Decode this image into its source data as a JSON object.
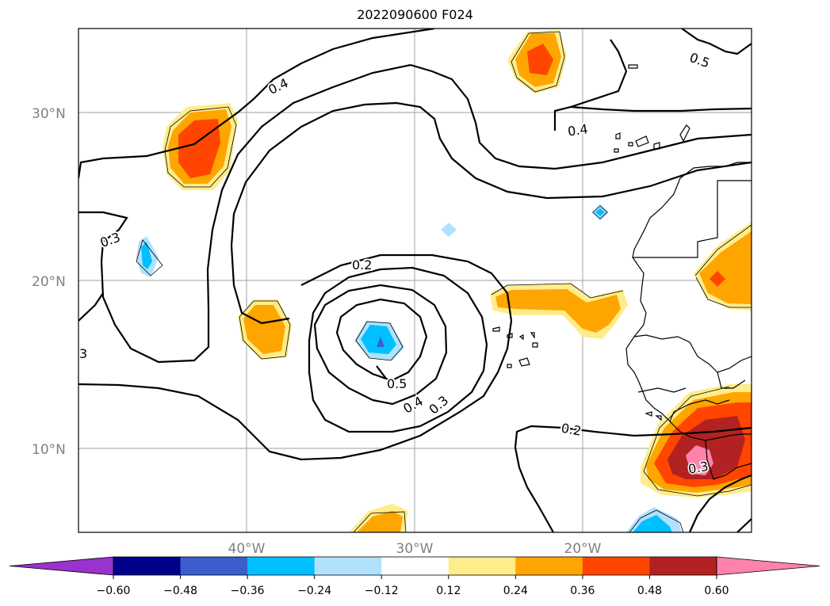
{
  "title": "2022090600 F024",
  "axes": {
    "lat_labels": [
      "30°N",
      "20°N",
      "10°N"
    ],
    "lon_labels": [
      "40°W",
      "30°W",
      "20°W"
    ]
  },
  "contour_labels": [
    "0.4",
    "0.5",
    "0.4",
    "0.3",
    "3",
    "0.2",
    "0.5",
    "0.4",
    "0.3",
    "0.2",
    "0.3"
  ],
  "colorbar": {
    "ticks": [
      "−0.60",
      "−0.48",
      "−0.36",
      "−0.24",
      "−0.12",
      "0.12",
      "0.24",
      "0.36",
      "0.48",
      "0.60"
    ],
    "colors": [
      "#9a32cd",
      "#00008b",
      "#3a5fcd",
      "#00bfff",
      "#b0e2ff",
      "#ffffff",
      "#ffec8b",
      "#ffa500",
      "#ff4500",
      "#b22222",
      "#ff82ab",
      "#ff82ab"
    ]
  },
  "colors": {
    "grid": "#b0b0b0",
    "contour": "#000000"
  }
}
